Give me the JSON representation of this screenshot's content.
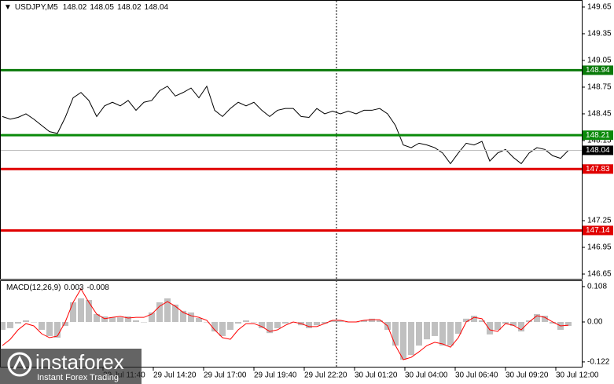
{
  "chart_data": [
    {
      "type": "line",
      "symbol": "USDJPY,M5",
      "ohlc": [
        148.02,
        148.05,
        148.02,
        148.04
      ],
      "x": [
        0,
        5,
        10,
        15,
        20,
        25,
        30,
        35,
        40,
        45,
        50,
        55,
        60,
        65,
        70,
        75,
        80,
        85,
        90,
        95,
        100,
        105,
        110,
        115,
        120,
        125,
        130,
        135,
        140,
        145,
        150,
        155,
        160,
        165,
        170,
        175,
        180,
        185,
        190,
        195,
        200,
        205,
        210,
        215,
        220,
        225,
        230,
        235,
        240,
        245,
        250,
        255,
        260,
        265,
        270,
        275,
        280,
        285,
        290,
        295,
        300,
        305,
        310,
        315,
        320,
        325,
        330,
        335,
        340,
        345,
        350,
        355,
        360
      ],
      "values": [
        148.42,
        148.39,
        148.41,
        148.45,
        148.39,
        148.32,
        148.25,
        148.23,
        148.41,
        148.63,
        148.69,
        148.6,
        148.42,
        148.54,
        148.58,
        148.54,
        148.6,
        148.49,
        148.58,
        148.6,
        148.71,
        148.76,
        148.65,
        148.69,
        148.74,
        148.63,
        148.76,
        148.49,
        148.42,
        148.51,
        148.58,
        148.54,
        148.58,
        148.49,
        148.42,
        148.49,
        148.51,
        148.51,
        148.42,
        148.41,
        148.51,
        148.45,
        148.48,
        148.45,
        148.48,
        148.45,
        148.49,
        148.49,
        148.51,
        148.45,
        148.32,
        148.1,
        148.07,
        148.12,
        148.1,
        148.07,
        148.01,
        147.89,
        148.01,
        148.12,
        148.1,
        148.14,
        147.92,
        148.01,
        148.05,
        147.96,
        147.89,
        148.01,
        148.07,
        148.05,
        147.98,
        147.95,
        148.04
      ],
      "color": "#000000",
      "xlim": [
        -1.5,
        368.5
      ],
      "ylim": [
        146.597,
        149.729
      ],
      "yticks": [
        149.65,
        149.35,
        149.05,
        148.75,
        148.45,
        148.15,
        147.25,
        146.95,
        146.65
      ],
      "levels": [
        {
          "value": 148.94,
          "color": "#0a7a0a"
        },
        {
          "value": 148.21,
          "color": "#0a8a0a"
        },
        {
          "value": 147.83,
          "color": "#e00000"
        },
        {
          "value": 147.14,
          "color": "#e00000"
        }
      ],
      "current": {
        "value": 148.04,
        "color": "#000000",
        "line_color": "#c0c0c0"
      }
    },
    {
      "type": "macd",
      "title": "MACD(12,26,9)",
      "readout": [
        0.003,
        -0.008
      ],
      "x": [
        0,
        5,
        10,
        15,
        20,
        25,
        30,
        35,
        40,
        45,
        50,
        55,
        60,
        65,
        70,
        75,
        80,
        85,
        90,
        95,
        100,
        105,
        110,
        115,
        120,
        125,
        130,
        135,
        140,
        145,
        150,
        155,
        160,
        165,
        170,
        175,
        180,
        185,
        190,
        195,
        200,
        205,
        210,
        215,
        220,
        225,
        230,
        235,
        240,
        245,
        250,
        255,
        260,
        265,
        270,
        275,
        280,
        285,
        290,
        295,
        300,
        305,
        310,
        315,
        320,
        325,
        330,
        335,
        340,
        345,
        350,
        355,
        360
      ],
      "histogram": {
        "color": "#c0c0c0",
        "values": [
          -0.024,
          -0.019,
          -0.005,
          0.005,
          0,
          -0.024,
          -0.043,
          -0.048,
          -0.012,
          0.06,
          0.072,
          0.067,
          0.024,
          0.017,
          0.014,
          0.014,
          0.017,
          0.005,
          0,
          0.029,
          0.06,
          0.072,
          0.053,
          0.034,
          0.029,
          0.012,
          0,
          -0.029,
          -0.043,
          -0.024,
          -0.005,
          0.005,
          0,
          -0.019,
          -0.034,
          -0.019,
          -0.005,
          0,
          -0.01,
          -0.019,
          -0.01,
          -0.005,
          0.005,
          0.005,
          0,
          0,
          0.005,
          0.01,
          0.005,
          -0.024,
          -0.072,
          -0.115,
          -0.101,
          -0.072,
          -0.053,
          -0.043,
          -0.072,
          -0.072,
          -0.036,
          0.01,
          0.019,
          0.005,
          -0.038,
          -0.024,
          -0.005,
          -0.012,
          -0.029,
          0.005,
          0.024,
          0.019,
          -0.005,
          -0.024,
          -0.012
        ]
      },
      "signal": {
        "color": "#ff0000",
        "values": [
          -0.072,
          -0.053,
          -0.024,
          -0.005,
          -0.012,
          -0.036,
          -0.048,
          -0.043,
          0,
          0.06,
          0.101,
          0.06,
          0.024,
          0.01,
          0.014,
          0.017,
          0.012,
          0.014,
          0.014,
          0.024,
          0.048,
          0.062,
          0.048,
          0.029,
          0.019,
          0.014,
          0.005,
          -0.024,
          -0.048,
          -0.053,
          -0.024,
          -0.005,
          -0.005,
          -0.014,
          -0.029,
          -0.024,
          -0.01,
          0,
          -0.005,
          -0.014,
          -0.014,
          -0.005,
          0.005,
          0.005,
          0,
          0,
          0.005,
          0.007,
          0.007,
          -0.012,
          -0.072,
          -0.115,
          -0.108,
          -0.091,
          -0.072,
          -0.062,
          -0.067,
          -0.077,
          -0.048,
          0,
          0.014,
          0.01,
          -0.024,
          -0.029,
          -0.005,
          -0.01,
          -0.024,
          0,
          0.019,
          0.014,
          0,
          -0.012,
          -0.01
        ]
      },
      "xlim": [
        -1.5,
        368.5
      ],
      "ylim": [
        -0.139,
        0.127
      ],
      "yticks": [
        0.108,
        {
          "value": 0,
          "label": "0.00"
        },
        -0.122
      ],
      "xticks": [
        {
          "value": 64,
          "label": "29 Jul 11:40"
        },
        {
          "value": 96,
          "label": "29 Jul 14:20"
        },
        {
          "value": 128,
          "label": "29 Jul 17:00"
        },
        {
          "value": 160,
          "label": "29 Jul 19:40"
        },
        {
          "value": 192,
          "label": "29 Jul 22:20"
        },
        {
          "value": 224,
          "label": "30 Jul 01:20"
        },
        {
          "value": 256,
          "label": "30 Jul 04:00"
        },
        {
          "value": 288,
          "label": "30 Jul 06:40"
        },
        {
          "value": 320,
          "label": "30 Jul 09:20"
        },
        {
          "value": 352,
          "label": "30 Jul 12:00"
        }
      ]
    }
  ],
  "watermark": {
    "brand": "instaforex",
    "tagline": "Instant Forex Trading"
  }
}
